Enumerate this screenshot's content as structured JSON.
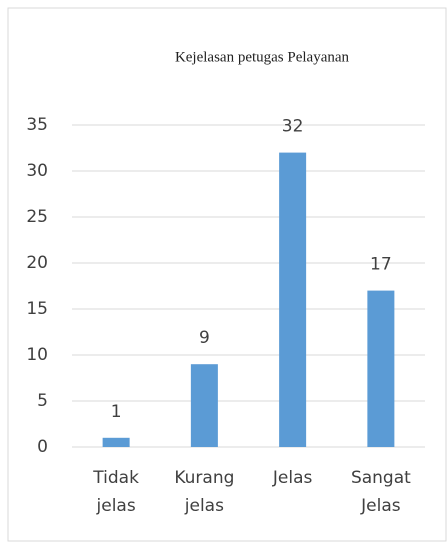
{
  "chart_data": {
    "type": "bar",
    "title": "Kejelasan petugas Pelayanan",
    "categories": [
      "Tidak jelas",
      "Kurang jelas",
      "Jelas",
      "Sangat Jelas"
    ],
    "values": [
      1,
      9,
      32,
      17
    ],
    "color": "#5b9bd5",
    "ylim": [
      0,
      35
    ],
    "yticks": [
      0,
      5,
      10,
      15,
      20,
      25,
      30,
      35
    ],
    "grid": true
  }
}
